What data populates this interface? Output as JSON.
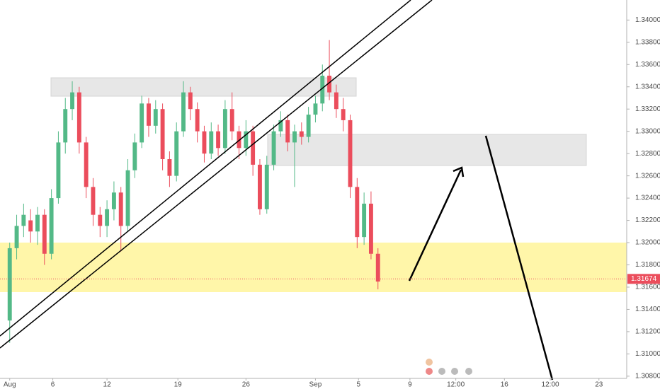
{
  "chart_data": {
    "type": "candlestick",
    "x": [
      0,
      0.5,
      1,
      1.5,
      2,
      2.5,
      3,
      3.5,
      4,
      4.5,
      5,
      5.5,
      6,
      6.5,
      7,
      7.5,
      8,
      8.5,
      9,
      9.5,
      10,
      10.5,
      11,
      11.5,
      12,
      12.5,
      13,
      13.5,
      14,
      14.5,
      15,
      15.5,
      16,
      16.5,
      17,
      17.5,
      18,
      18.5,
      19,
      19.5,
      20,
      20.5,
      21,
      21.5,
      22,
      22.5,
      23,
      23.5,
      24,
      24.5,
      25,
      25.5,
      26,
      26.5
    ],
    "open": [
      1.313,
      1.3195,
      1.3215,
      1.322,
      1.321,
      1.3225,
      1.319,
      1.324,
      1.329,
      1.332,
      1.3335,
      1.329,
      1.325,
      1.3225,
      1.3215,
      1.323,
      1.3245,
      1.3215,
      1.3265,
      1.329,
      1.3325,
      1.3305,
      1.332,
      1.3275,
      1.326,
      1.33,
      1.3335,
      1.332,
      1.33,
      1.328,
      1.33,
      1.3285,
      1.332,
      1.33,
      1.3285,
      1.33,
      1.327,
      1.323,
      1.327,
      1.33,
      1.331,
      1.329,
      1.33,
      1.3295,
      1.3315,
      1.3325,
      1.335,
      1.3335,
      1.332,
      1.331,
      1.325,
      1.3205,
      1.3235,
      1.319
    ],
    "high": [
      1.32,
      1.3225,
      1.3235,
      1.323,
      1.3232,
      1.323,
      1.3248,
      1.33,
      1.333,
      1.3345,
      1.334,
      1.3295,
      1.3258,
      1.3232,
      1.3238,
      1.3255,
      1.325,
      1.3275,
      1.3298,
      1.3332,
      1.333,
      1.3328,
      1.3325,
      1.3282,
      1.3308,
      1.3345,
      1.334,
      1.3326,
      1.3305,
      1.3308,
      1.3306,
      1.3328,
      1.3335,
      1.3305,
      1.331,
      1.3305,
      1.3275,
      1.3278,
      1.3306,
      1.3318,
      1.3315,
      1.3306,
      1.3308,
      1.3322,
      1.3332,
      1.336,
      1.3382,
      1.3342,
      1.333,
      1.3315,
      1.3258,
      1.3245,
      1.3246,
      1.3195
    ],
    "low": [
      1.311,
      1.3185,
      1.3205,
      1.32,
      1.3198,
      1.318,
      1.3185,
      1.3235,
      1.328,
      1.331,
      1.328,
      1.324,
      1.3215,
      1.3205,
      1.3205,
      1.322,
      1.3192,
      1.321,
      1.3258,
      1.3285,
      1.3295,
      1.3298,
      1.3265,
      1.325,
      1.3255,
      1.3295,
      1.331,
      1.329,
      1.3272,
      1.3275,
      1.3278,
      1.328,
      1.3292,
      1.3275,
      1.3278,
      1.326,
      1.3225,
      1.3226,
      1.3265,
      1.3295,
      1.3282,
      1.325,
      1.3288,
      1.329,
      1.3308,
      1.3318,
      1.3328,
      1.3312,
      1.33,
      1.324,
      1.3195,
      1.3198,
      1.3185,
      1.3158
    ],
    "close": [
      1.3195,
      1.3215,
      1.3225,
      1.321,
      1.3225,
      1.319,
      1.324,
      1.329,
      1.332,
      1.3335,
      1.329,
      1.325,
      1.3225,
      1.3215,
      1.323,
      1.3245,
      1.3215,
      1.3265,
      1.329,
      1.3325,
      1.3305,
      1.332,
      1.3275,
      1.326,
      1.33,
      1.3335,
      1.332,
      1.33,
      1.328,
      1.33,
      1.3285,
      1.332,
      1.33,
      1.3285,
      1.33,
      1.327,
      1.323,
      1.327,
      1.33,
      1.331,
      1.329,
      1.33,
      1.3295,
      1.3315,
      1.3325,
      1.335,
      1.3335,
      1.332,
      1.331,
      1.325,
      1.3205,
      1.3235,
      1.319,
      1.3165
    ],
    "up_color": "#53b987",
    "down_color": "#eb4d5c",
    "last_price": 1.31674,
    "xlim": [
      -0.7,
      44.4
    ],
    "xticks": [
      {
        "value": 0,
        "label": "Aug"
      },
      {
        "value": 3.1,
        "label": "6"
      },
      {
        "value": 7.0,
        "label": "12"
      },
      {
        "value": 12.1,
        "label": "19"
      },
      {
        "value": 17.0,
        "label": "26"
      },
      {
        "value": 22.0,
        "label": "Sep"
      },
      {
        "value": 25.1,
        "label": "5"
      },
      {
        "value": 28.8,
        "label": "9"
      },
      {
        "value": 32.1,
        "label": "12:00"
      },
      {
        "value": 35.6,
        "label": "16"
      },
      {
        "value": 38.9,
        "label": "12:00"
      },
      {
        "value": 42.4,
        "label": "23"
      }
    ],
    "ylim": [
      1.3078,
      1.3418
    ],
    "yticks": [
      {
        "value": 1.308,
        "label": "1.30800"
      },
      {
        "value": 1.31,
        "label": "1.31000"
      },
      {
        "value": 1.312,
        "label": "1.31200"
      },
      {
        "value": 1.314,
        "label": "1.31400"
      },
      {
        "value": 1.316,
        "label": "1.31600"
      },
      {
        "value": 1.318,
        "label": "1.31800"
      },
      {
        "value": 1.32,
        "label": "1.32000"
      },
      {
        "value": 1.322,
        "label": "1.32200"
      },
      {
        "value": 1.324,
        "label": "1.32400"
      },
      {
        "value": 1.326,
        "label": "1.32600"
      },
      {
        "value": 1.328,
        "label": "1.32800"
      },
      {
        "value": 1.33,
        "label": "1.33000"
      },
      {
        "value": 1.332,
        "label": "1.33200"
      },
      {
        "value": 1.334,
        "label": "1.33400"
      },
      {
        "value": 1.336,
        "label": "1.33600"
      },
      {
        "value": 1.338,
        "label": "1.33800"
      },
      {
        "value": 1.34,
        "label": "1.34000"
      }
    ],
    "grid": false
  }
}
